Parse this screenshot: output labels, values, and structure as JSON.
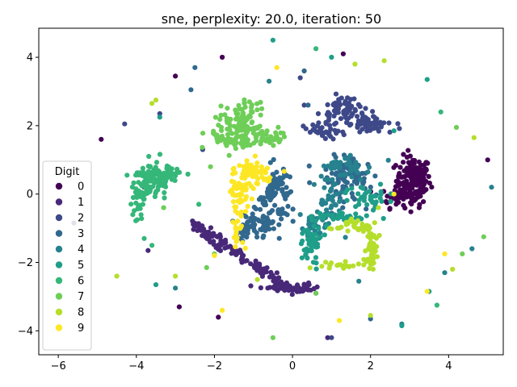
{
  "chart_data": {
    "type": "scatter",
    "title": "sne, perplexity: 20.0, iteration: 50",
    "xlabel": "",
    "ylabel": "",
    "xlim": [
      -6.5,
      5.4
    ],
    "ylim": [
      -4.7,
      4.85
    ],
    "xticks": [
      -6,
      -4,
      -2,
      0,
      2,
      4
    ],
    "yticks": [
      -4,
      -2,
      0,
      2,
      4
    ],
    "xtick_labels": [
      "−6",
      "−4",
      "−2",
      "0",
      "2",
      "4"
    ],
    "ytick_labels": [
      "−4",
      "−2",
      "0",
      "2",
      "4"
    ],
    "legend": {
      "title": "Digit",
      "placement": "lower-left",
      "entries": [
        "0",
        "1",
        "2",
        "3",
        "4",
        "5",
        "6",
        "7",
        "8",
        "9"
      ]
    },
    "grid": false,
    "series": [
      {
        "name": "0",
        "color": "#440154",
        "clusters": [
          {
            "cx": 3.1,
            "cy": 0.4,
            "sx": 0.22,
            "sy": 0.35,
            "n": 170
          },
          {
            "cx": 2.7,
            "cy": -0.1,
            "sx": 0.2,
            "sy": 0.15,
            "n": 40
          }
        ],
        "points": [
          [
            -4.9,
            1.6
          ],
          [
            -3.0,
            3.45
          ],
          [
            -1.8,
            4.0
          ],
          [
            -2.9,
            -3.3
          ],
          [
            5.0,
            1.0
          ],
          [
            1.3,
            4.1
          ],
          [
            -1.9,
            -3.6
          ],
          [
            -1.2,
            0.6
          ]
        ]
      },
      {
        "name": "1",
        "color": "#482878",
        "clusters": [
          {
            "cx": -0.2,
            "cy": -2.7,
            "sx": 0.3,
            "sy": 0.06,
            "n": 40
          },
          {
            "cx": 0.2,
            "cy": -2.8,
            "sx": 0.2,
            "sy": 0.04,
            "n": 25
          }
        ],
        "lines": [
          {
            "from": [
              -2.4,
              -0.9
            ],
            "to": [
              -0.2,
              -2.7
            ],
            "n": 90,
            "spread": 0.06
          },
          {
            "from": [
              -2.6,
              -0.8
            ],
            "to": [
              -1.9,
              -1.6
            ],
            "n": 35,
            "spread": 0.06
          }
        ],
        "points": [
          [
            -3.7,
            -1.65
          ],
          [
            0.9,
            -4.2
          ],
          [
            -5.6,
            -0.85
          ],
          [
            -3.8,
            0.2
          ],
          [
            0.6,
            -2.9
          ]
        ]
      },
      {
        "name": "2",
        "color": "#3e4989",
        "clusters": [
          {
            "cx": 1.3,
            "cy": 2.45,
            "sx": 0.3,
            "sy": 0.2,
            "n": 70
          },
          {
            "cx": 1.9,
            "cy": 2.05,
            "sx": 0.3,
            "sy": 0.12,
            "n": 60
          },
          {
            "cx": 0.8,
            "cy": 1.8,
            "sx": 0.25,
            "sy": 0.1,
            "n": 35
          }
        ],
        "points": [
          [
            0.2,
            3.4
          ],
          [
            -2.3,
            1.3
          ],
          [
            -3.4,
            2.35
          ],
          [
            0.3,
            2.6
          ],
          [
            -4.3,
            2.05
          ],
          [
            1.0,
            -4.2
          ],
          [
            2.1,
            2.25
          ]
        ]
      },
      {
        "name": "3",
        "color": "#31688e",
        "clusters": [
          {
            "cx": -0.3,
            "cy": -0.1,
            "sx": 0.2,
            "sy": 0.4,
            "n": 60
          },
          {
            "cx": -0.9,
            "cy": -0.9,
            "sx": 0.3,
            "sy": 0.2,
            "n": 50
          },
          {
            "cx": 1.4,
            "cy": 0.45,
            "sx": 0.35,
            "sy": 0.3,
            "n": 90
          }
        ],
        "lines": [
          {
            "from": [
              -0.2,
              0.7
            ],
            "to": [
              -1.4,
              -1.3
            ],
            "n": 50,
            "spread": 0.07
          }
        ],
        "points": [
          [
            0.3,
            3.6
          ],
          [
            -2.5,
            3.7
          ],
          [
            -2.6,
            3.05
          ],
          [
            -0.4,
            1.65
          ],
          [
            0.4,
            2.6
          ],
          [
            2.0,
            -3.65
          ]
        ]
      },
      {
        "name": "4",
        "color": "#26828e",
        "clusters": [
          {
            "cx": 0.9,
            "cy": -0.2,
            "sx": 0.2,
            "sy": 0.45,
            "n": 50
          },
          {
            "cx": 1.4,
            "cy": 0.8,
            "sx": 0.3,
            "sy": 0.15,
            "n": 40
          },
          {
            "cx": 0.5,
            "cy": -0.9,
            "sx": 0.1,
            "sy": 0.15,
            "n": 25
          }
        ],
        "points": [
          [
            0.2,
            -0.6
          ],
          [
            2.8,
            -3.8
          ],
          [
            3.9,
            -2.3
          ],
          [
            4.6,
            -1.6
          ],
          [
            5.1,
            0.2
          ],
          [
            -3.0,
            -2.75
          ],
          [
            1.7,
            -2.55
          ],
          [
            -0.6,
            3.3
          ]
        ]
      },
      {
        "name": "5",
        "color": "#1f9e89",
        "clusters": [
          {
            "cx": 0.5,
            "cy": -1.5,
            "sx": 0.15,
            "sy": 0.3,
            "n": 45
          },
          {
            "cx": 1.2,
            "cy": -0.7,
            "sx": 0.35,
            "sy": 0.08,
            "n": 35
          },
          {
            "cx": 1.9,
            "cy": -0.05,
            "sx": 0.25,
            "sy": 0.2,
            "n": 35
          }
        ],
        "points": [
          [
            -0.5,
            4.5
          ],
          [
            1.0,
            4.0
          ],
          [
            3.45,
            3.35
          ],
          [
            -3.4,
            2.25
          ],
          [
            -3.5,
            -2.65
          ],
          [
            3.5,
            -2.85
          ],
          [
            2.6,
            1.85
          ],
          [
            2.8,
            -3.85
          ]
        ]
      },
      {
        "name": "6",
        "color": "#35b779",
        "clusters": [
          {
            "cx": -3.7,
            "cy": 0.35,
            "sx": 0.25,
            "sy": 0.25,
            "n": 80
          },
          {
            "cx": -3.3,
            "cy": 0.6,
            "sx": 0.3,
            "sy": 0.15,
            "n": 50
          },
          {
            "cx": -3.9,
            "cy": -0.2,
            "sx": 0.1,
            "sy": 0.3,
            "n": 25
          }
        ],
        "points": [
          [
            -3.8,
            -1.3
          ],
          [
            -3.6,
            -1.5
          ],
          [
            0.6,
            4.25
          ],
          [
            3.8,
            2.4
          ],
          [
            3.7,
            -3.25
          ],
          [
            -2.4,
            -0.3
          ]
        ]
      },
      {
        "name": "7",
        "color": "#6ece58",
        "clusters": [
          {
            "cx": -1.3,
            "cy": 2.1,
            "sx": 0.25,
            "sy": 0.3,
            "n": 100
          },
          {
            "cx": -1.5,
            "cy": 1.6,
            "sx": 0.35,
            "sy": 0.15,
            "n": 50
          },
          {
            "cx": -0.6,
            "cy": 1.7,
            "sx": 0.2,
            "sy": 0.15,
            "n": 30
          }
        ],
        "points": [
          [
            -0.5,
            -4.2
          ],
          [
            4.2,
            1.95
          ],
          [
            4.35,
            -1.75
          ],
          [
            4.9,
            -1.25
          ],
          [
            -2.2,
            -2.15
          ],
          [
            -2.0,
            -1.75
          ],
          [
            0.6,
            -2.9
          ],
          [
            -2.1,
            0.8
          ],
          [
            -3.3,
            -0.4
          ]
        ]
      },
      {
        "name": "8",
        "color": "#b5de2b",
        "clusters": [
          {
            "cx": 2.0,
            "cy": -1.6,
            "sx": 0.1,
            "sy": 0.4,
            "n": 50
          },
          {
            "cx": 1.5,
            "cy": -1.0,
            "sx": 0.25,
            "sy": 0.1,
            "n": 30
          },
          {
            "cx": 1.2,
            "cy": -2.1,
            "sx": 0.25,
            "sy": 0.05,
            "n": 20
          }
        ],
        "points": [
          [
            -3.5,
            2.75
          ],
          [
            -3.6,
            2.65
          ],
          [
            2.35,
            3.9
          ],
          [
            1.6,
            3.8
          ],
          [
            4.65,
            1.65
          ],
          [
            -4.5,
            -2.4
          ],
          [
            -3.0,
            -2.4
          ],
          [
            2.0,
            -3.55
          ],
          [
            4.1,
            -2.2
          ],
          [
            2.2,
            -0.4
          ],
          [
            -0.9,
            -2.5
          ]
        ]
      },
      {
        "name": "9",
        "color": "#fde725",
        "clusters": [
          {
            "cx": -1.0,
            "cy": 0.65,
            "sx": 0.25,
            "sy": 0.2,
            "n": 60
          },
          {
            "cx": -1.3,
            "cy": 0.0,
            "sx": 0.15,
            "sy": 0.3,
            "n": 35
          },
          {
            "cx": -1.4,
            "cy": -0.9,
            "sx": 0.1,
            "sy": 0.35,
            "n": 25
          }
        ],
        "points": [
          [
            -0.4,
            3.7
          ],
          [
            1.2,
            -3.7
          ],
          [
            -1.8,
            -3.4
          ],
          [
            3.45,
            -2.85
          ],
          [
            3.9,
            -1.75
          ],
          [
            2.6,
            0.0
          ],
          [
            -2.0,
            -1.8
          ]
        ]
      }
    ]
  }
}
